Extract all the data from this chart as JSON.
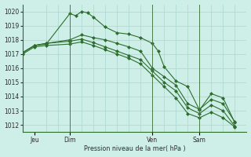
{
  "background_color": "#ceeee8",
  "grid_color": "#a8d8d0",
  "line_color": "#2d6e2d",
  "marker_color": "#2d6e2d",
  "xlabel": "Pression niveau de la mer( hPa )",
  "ylim": [
    1011.5,
    1020.5
  ],
  "yticks": [
    1012,
    1013,
    1014,
    1015,
    1016,
    1017,
    1018,
    1019,
    1020
  ],
  "day_labels": [
    "Jeu",
    "Dim",
    "Ven",
    "Sam"
  ],
  "day_positions": [
    2,
    8,
    22,
    30
  ],
  "day_vline_x": [
    8,
    22,
    30
  ],
  "xlim": [
    0,
    38
  ],
  "line1_x": [
    0,
    2,
    4,
    8,
    9,
    10,
    11,
    12,
    14,
    16,
    18,
    20,
    22,
    23,
    24,
    26,
    28,
    30,
    32,
    34,
    36
  ],
  "line1_y": [
    1017.1,
    1017.6,
    1017.7,
    1019.85,
    1019.7,
    1020.0,
    1019.9,
    1019.6,
    1018.9,
    1018.5,
    1018.4,
    1018.15,
    1017.75,
    1017.2,
    1016.1,
    1015.1,
    1014.7,
    1013.05,
    1014.2,
    1013.9,
    1012.15
  ],
  "line2_x": [
    0,
    2,
    4,
    8,
    10,
    12,
    14,
    16,
    18,
    20,
    22,
    24,
    26,
    28,
    30,
    32,
    34,
    36
  ],
  "line2_y": [
    1017.1,
    1017.6,
    1017.75,
    1018.0,
    1018.35,
    1018.15,
    1018.0,
    1017.75,
    1017.5,
    1017.2,
    1016.0,
    1015.4,
    1014.8,
    1013.5,
    1013.1,
    1013.8,
    1013.5,
    1012.2
  ],
  "line3_x": [
    0,
    2,
    4,
    8,
    10,
    12,
    14,
    16,
    18,
    20,
    22,
    24,
    26,
    28,
    30,
    32,
    34,
    36
  ],
  "line3_y": [
    1017.1,
    1017.6,
    1017.75,
    1017.9,
    1018.05,
    1017.8,
    1017.5,
    1017.2,
    1016.9,
    1016.6,
    1015.8,
    1015.0,
    1014.4,
    1013.2,
    1012.8,
    1013.4,
    1013.0,
    1011.9
  ],
  "line4_x": [
    0,
    2,
    4,
    8,
    10,
    12,
    14,
    16,
    18,
    20,
    22,
    24,
    26,
    28,
    30,
    32,
    34,
    36
  ],
  "line4_y": [
    1017.0,
    1017.5,
    1017.6,
    1017.7,
    1017.85,
    1017.6,
    1017.3,
    1017.0,
    1016.7,
    1016.3,
    1015.5,
    1014.7,
    1013.9,
    1012.8,
    1012.5,
    1012.9,
    1012.5,
    1011.85
  ]
}
